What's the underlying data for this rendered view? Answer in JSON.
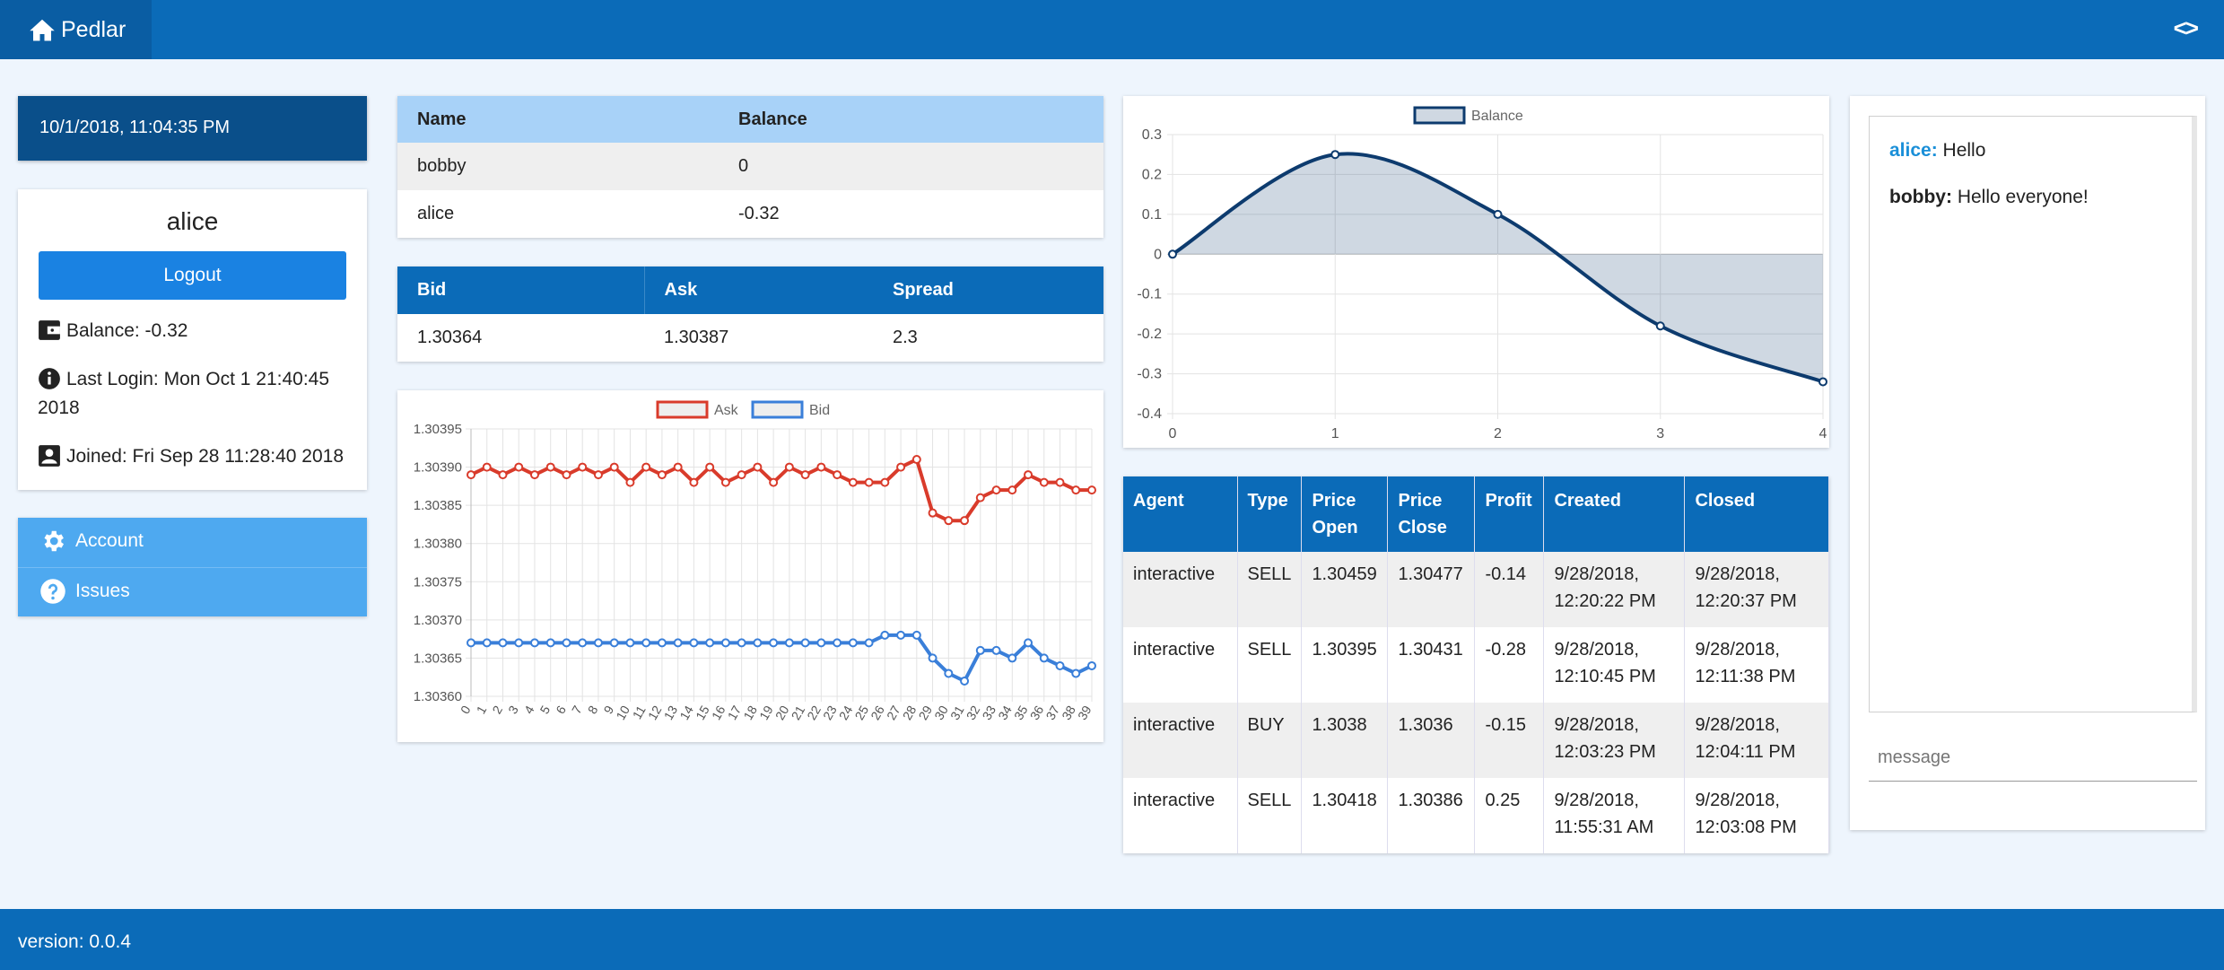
{
  "app": {
    "title": "Pedlar",
    "toggle_label": "<>"
  },
  "sidebar": {
    "datetime": "10/1/2018, 11:04:35 PM",
    "username": "alice",
    "logout_label": "Logout",
    "balance": "Balance: -0.32",
    "last_login": "Last Login: Mon Oct 1 21:40:45 2018",
    "joined": "Joined: Fri Sep 28 11:28:40 2018",
    "menu": [
      {
        "label": "Account",
        "icon": "gear-icon"
      },
      {
        "label": "Issues",
        "icon": "question-icon"
      }
    ]
  },
  "leaderboard": {
    "headers": [
      "Name",
      "Balance"
    ],
    "rows": [
      [
        "bobby",
        "0"
      ],
      [
        "alice",
        "-0.32"
      ]
    ]
  },
  "quote": {
    "headers": [
      "Bid",
      "Ask",
      "Spread"
    ],
    "values": [
      "1.30364",
      "1.30387",
      "2.3"
    ]
  },
  "price_chart": {
    "legend": [
      "Ask",
      "Bid"
    ],
    "colors": {
      "ask": "#d93b2b",
      "bid": "#3a7fd9"
    }
  },
  "balance_chart": {
    "legend": "Balance",
    "color": "#0d3b6e"
  },
  "trades": {
    "headers": [
      "Agent",
      "Type",
      "Price Open",
      "Price Close",
      "Profit",
      "Created",
      "Closed"
    ],
    "rows": [
      [
        "interactive",
        "SELL",
        "1.30459",
        "1.30477",
        "-0.14",
        "9/28/2018, 12:20:22 PM",
        "9/28/2018, 12:20:37 PM"
      ],
      [
        "interactive",
        "SELL",
        "1.30395",
        "1.30431",
        "-0.28",
        "9/28/2018, 12:10:45 PM",
        "9/28/2018, 12:11:38 PM"
      ],
      [
        "interactive",
        "BUY",
        "1.3038",
        "1.3036",
        "-0.15",
        "9/28/2018, 12:03:23 PM",
        "9/28/2018, 12:04:11 PM"
      ],
      [
        "interactive",
        "SELL",
        "1.30418",
        "1.30386",
        "0.25",
        "9/28/2018, 11:55:31 AM",
        "9/28/2018, 12:03:08 PM"
      ]
    ]
  },
  "chat": {
    "messages": [
      {
        "user": "alice:",
        "text": " Hello"
      },
      {
        "user": "bobby:",
        "text": " Hello everyone!"
      }
    ],
    "placeholder": "message"
  },
  "footer": {
    "version": "version: 0.0.4"
  },
  "chart_data": [
    {
      "type": "line",
      "x": [
        0,
        1,
        2,
        3,
        4,
        5,
        6,
        7,
        8,
        9,
        10,
        11,
        12,
        13,
        14,
        15,
        16,
        17,
        18,
        19,
        20,
        21,
        22,
        23,
        24,
        25,
        26,
        27,
        28,
        29,
        30,
        31,
        32,
        33,
        34,
        35,
        36,
        37,
        38,
        39
      ],
      "series": [
        {
          "name": "Ask",
          "values": [
            1.30389,
            1.3039,
            1.30389,
            1.3039,
            1.30389,
            1.3039,
            1.30389,
            1.3039,
            1.30389,
            1.3039,
            1.30388,
            1.3039,
            1.30389,
            1.3039,
            1.30388,
            1.3039,
            1.30388,
            1.30389,
            1.3039,
            1.30388,
            1.3039,
            1.30389,
            1.3039,
            1.30389,
            1.30388,
            1.30388,
            1.30388,
            1.3039,
            1.30391,
            1.30384,
            1.30383,
            1.30383,
            1.30386,
            1.30387,
            1.30387,
            1.30389,
            1.30388,
            1.30388,
            1.30387,
            1.30387
          ]
        },
        {
          "name": "Bid",
          "values": [
            1.30367,
            1.30367,
            1.30367,
            1.30367,
            1.30367,
            1.30367,
            1.30367,
            1.30367,
            1.30367,
            1.30367,
            1.30367,
            1.30367,
            1.30367,
            1.30367,
            1.30367,
            1.30367,
            1.30367,
            1.30367,
            1.30367,
            1.30367,
            1.30367,
            1.30367,
            1.30367,
            1.30367,
            1.30367,
            1.30367,
            1.30368,
            1.30368,
            1.30368,
            1.30365,
            1.30363,
            1.30362,
            1.30366,
            1.30366,
            1.30365,
            1.30367,
            1.30365,
            1.30364,
            1.30363,
            1.30364
          ]
        }
      ],
      "ylim": [
        1.3036,
        1.30395
      ],
      "yticks": [
        "1.30395",
        "1.30390",
        "1.30385",
        "1.30380",
        "1.30375",
        "1.30370",
        "1.30365",
        "1.30360"
      ],
      "grid": true,
      "legend": "top"
    },
    {
      "type": "area",
      "x": [
        0,
        1,
        2,
        3,
        4
      ],
      "series": [
        {
          "name": "Balance",
          "values": [
            0,
            0.25,
            0.1,
            -0.18,
            -0.32
          ]
        }
      ],
      "ylim": [
        -0.4,
        0.3
      ],
      "yticks": [
        "0.3",
        "0.2",
        "0.1",
        "0",
        "-0.1",
        "-0.2",
        "-0.3",
        "-0.4"
      ],
      "grid": true,
      "legend": "top"
    }
  ]
}
